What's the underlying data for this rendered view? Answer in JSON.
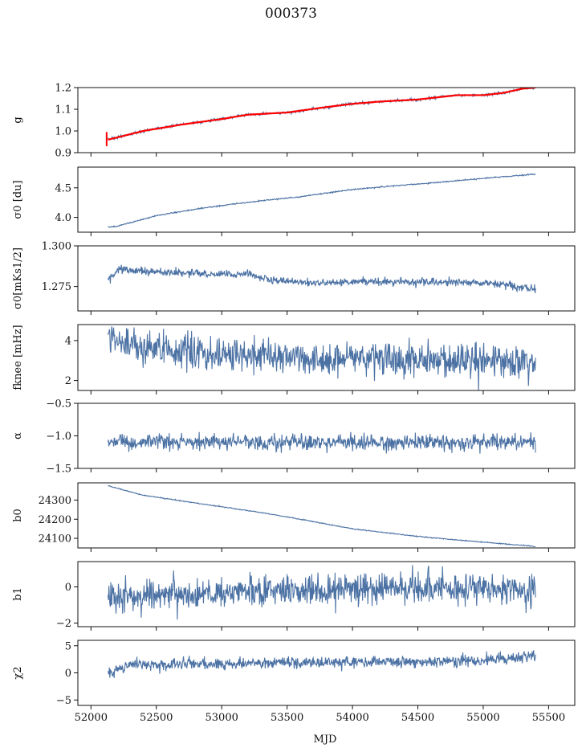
{
  "figure": {
    "title": "000373",
    "xlabel": "MJD"
  },
  "colors": {
    "series": "#4c72a4",
    "fit": "#ff0000"
  },
  "chart_data": {
    "type": "line",
    "x_range": [
      52130,
      55400
    ],
    "xlim": [
      51900,
      55700
    ],
    "xticks": [
      52000,
      52500,
      53000,
      53500,
      54000,
      54500,
      55000,
      55500
    ],
    "xtick_labels": [
      "52000",
      "52500",
      "53000",
      "53500",
      "54000",
      "54500",
      "55000",
      "55500"
    ],
    "panels": [
      {
        "id": "g",
        "ylabel": "g",
        "ylim": [
          0.9,
          1.2
        ],
        "yticks": [
          0.9,
          1.0,
          1.1,
          1.2
        ],
        "ytick_labels": [
          "0.9",
          "1.0",
          "1.1",
          "1.2"
        ],
        "trend": [
          [
            52130,
            0.96
          ],
          [
            52200,
            0.97
          ],
          [
            52400,
            1.0
          ],
          [
            52700,
            1.03
          ],
          [
            53000,
            1.055
          ],
          [
            53200,
            1.075
          ],
          [
            53500,
            1.085
          ],
          [
            53800,
            1.11
          ],
          [
            54000,
            1.125
          ],
          [
            54200,
            1.135
          ],
          [
            54500,
            1.145
          ],
          [
            54800,
            1.165
          ],
          [
            55000,
            1.165
          ],
          [
            55150,
            1.175
          ],
          [
            55300,
            1.195
          ],
          [
            55400,
            1.2
          ]
        ],
        "noise": 0.003,
        "overlay": "fit"
      },
      {
        "id": "sigma0-du",
        "ylabel": "σ0 [du]",
        "ylim": [
          3.75,
          4.85
        ],
        "yticks": [
          4.0,
          4.5
        ],
        "ytick_labels": [
          "4.0",
          "4.5"
        ],
        "trend": [
          [
            52150,
            3.84
          ],
          [
            52200,
            3.85
          ],
          [
            52500,
            4.03
          ],
          [
            52800,
            4.14
          ],
          [
            53000,
            4.2
          ],
          [
            53300,
            4.28
          ],
          [
            53600,
            4.35
          ],
          [
            54000,
            4.47
          ],
          [
            54300,
            4.53
          ],
          [
            54600,
            4.58
          ],
          [
            55000,
            4.66
          ],
          [
            55400,
            4.73
          ]
        ],
        "noise": 0.005
      },
      {
        "id": "sigma0-mk",
        "ylabel": "σ0[mKs1/2]",
        "ylim": [
          1.26,
          1.3
        ],
        "yticks": [
          1.275,
          1.3
        ],
        "ytick_labels": [
          "1.275",
          "1.300"
        ],
        "trend": [
          [
            52130,
            1.279
          ],
          [
            52220,
            1.286
          ],
          [
            52500,
            1.284
          ],
          [
            52800,
            1.283
          ],
          [
            53000,
            1.282
          ],
          [
            53200,
            1.283
          ],
          [
            53350,
            1.279
          ],
          [
            53700,
            1.277
          ],
          [
            54000,
            1.278
          ],
          [
            54400,
            1.278
          ],
          [
            54800,
            1.278
          ],
          [
            55200,
            1.276
          ],
          [
            55400,
            1.273
          ]
        ],
        "noise": 0.0012
      },
      {
        "id": "fknee",
        "ylabel": "fknee [mHz]",
        "ylim": [
          1.5,
          4.8
        ],
        "yticks": [
          2,
          4
        ],
        "ytick_labels": [
          "2",
          "4"
        ],
        "trend": [
          [
            52130,
            4.1
          ],
          [
            52300,
            3.8
          ],
          [
            52600,
            3.5
          ],
          [
            53000,
            3.3
          ],
          [
            53500,
            3.2
          ],
          [
            54000,
            3.1
          ],
          [
            54500,
            3.05
          ],
          [
            55000,
            3.0
          ],
          [
            55400,
            2.9
          ]
        ],
        "noise": 0.42
      },
      {
        "id": "alpha",
        "ylabel": "α",
        "ylim": [
          -1.5,
          -0.5
        ],
        "yticks": [
          -1.5,
          -1.0,
          -0.5
        ],
        "ytick_labels": [
          "−1.5",
          "−1.0",
          "−0.5"
        ],
        "trend": [
          [
            52130,
            -1.1
          ],
          [
            55400,
            -1.1
          ]
        ],
        "noise": 0.06
      },
      {
        "id": "b0",
        "ylabel": "b0",
        "ylim": [
          24050,
          24390
        ],
        "yticks": [
          24100,
          24200,
          24300
        ],
        "ytick_labels": [
          "24100",
          "24200",
          "24300"
        ],
        "trend": [
          [
            52130,
            24375
          ],
          [
            52400,
            24325
          ],
          [
            52700,
            24295
          ],
          [
            53000,
            24265
          ],
          [
            53300,
            24235
          ],
          [
            53600,
            24200
          ],
          [
            54000,
            24150
          ],
          [
            54500,
            24110
          ],
          [
            55000,
            24080
          ],
          [
            55400,
            24058
          ]
        ],
        "noise": 1.2
      },
      {
        "id": "b1",
        "ylabel": "b1",
        "ylim": [
          -2.2,
          1.4
        ],
        "yticks": [
          -2,
          0
        ],
        "ytick_labels": [
          "−2",
          "0"
        ],
        "trend": [
          [
            52130,
            -0.5
          ],
          [
            52500,
            -0.5
          ],
          [
            53000,
            -0.35
          ],
          [
            53500,
            -0.3
          ],
          [
            54000,
            -0.1
          ],
          [
            54500,
            -0.05
          ],
          [
            55000,
            -0.1
          ],
          [
            55400,
            -0.3
          ]
        ],
        "noise": 0.45
      },
      {
        "id": "chi2",
        "ylabel": "χ2",
        "ylim": [
          -6,
          6
        ],
        "yticks": [
          -5,
          0,
          5
        ],
        "ytick_labels": [
          "−5",
          "0",
          "5"
        ],
        "trend": [
          [
            52130,
            0.0
          ],
          [
            52300,
            1.5
          ],
          [
            53000,
            1.7
          ],
          [
            54000,
            2.0
          ],
          [
            55000,
            2.2
          ],
          [
            55400,
            3.2
          ]
        ],
        "noise": 0.55
      }
    ]
  }
}
